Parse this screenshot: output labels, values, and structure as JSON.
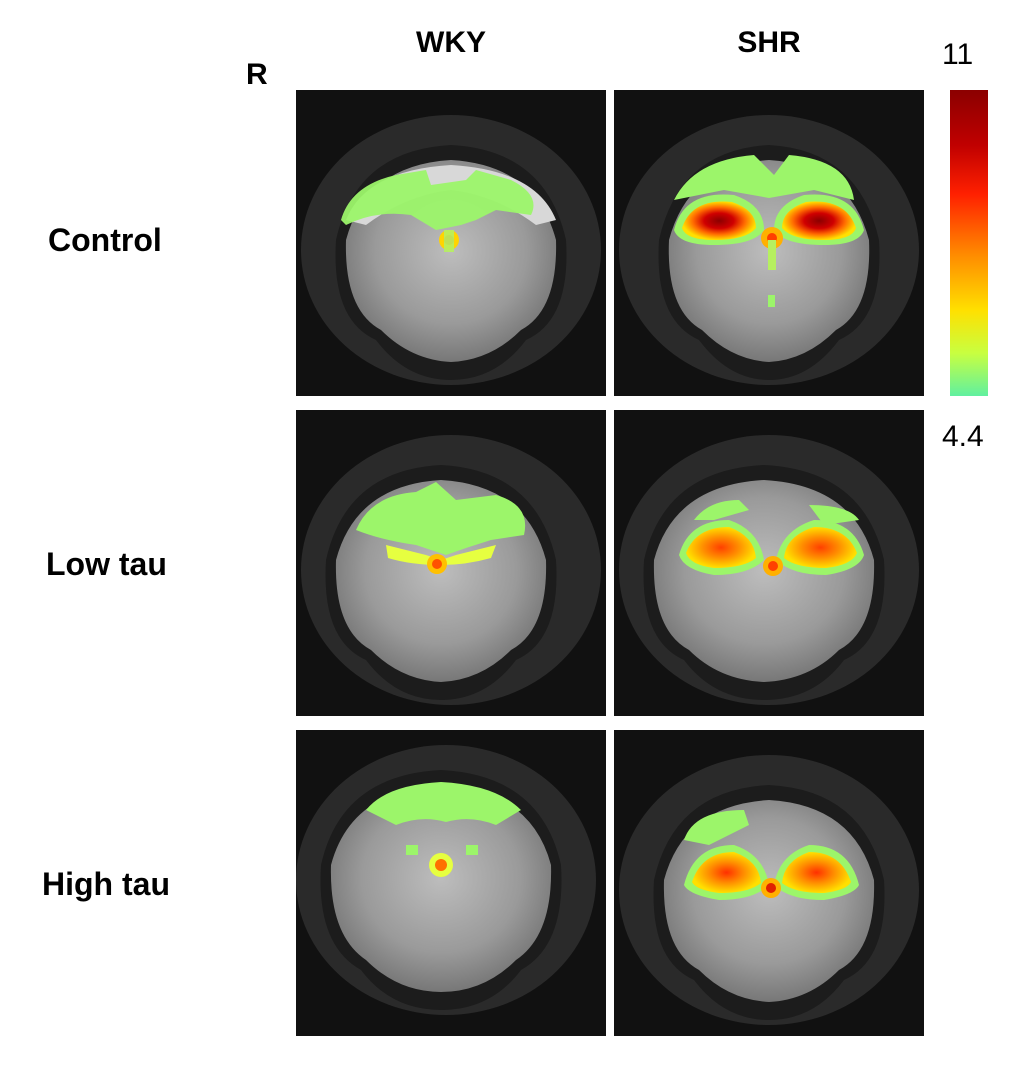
{
  "figure": {
    "orientation_label": "R",
    "columns": [
      "WKY",
      "SHR"
    ],
    "rows": [
      "Control",
      "Low tau",
      "High tau"
    ],
    "colorbar": {
      "max_label": "11",
      "min_label": "4.4",
      "colors": [
        "#8b0000",
        "#c00000",
        "#ff2000",
        "#ff8c00",
        "#ffe000",
        "#c8ff40",
        "#60f0a0"
      ]
    }
  }
}
